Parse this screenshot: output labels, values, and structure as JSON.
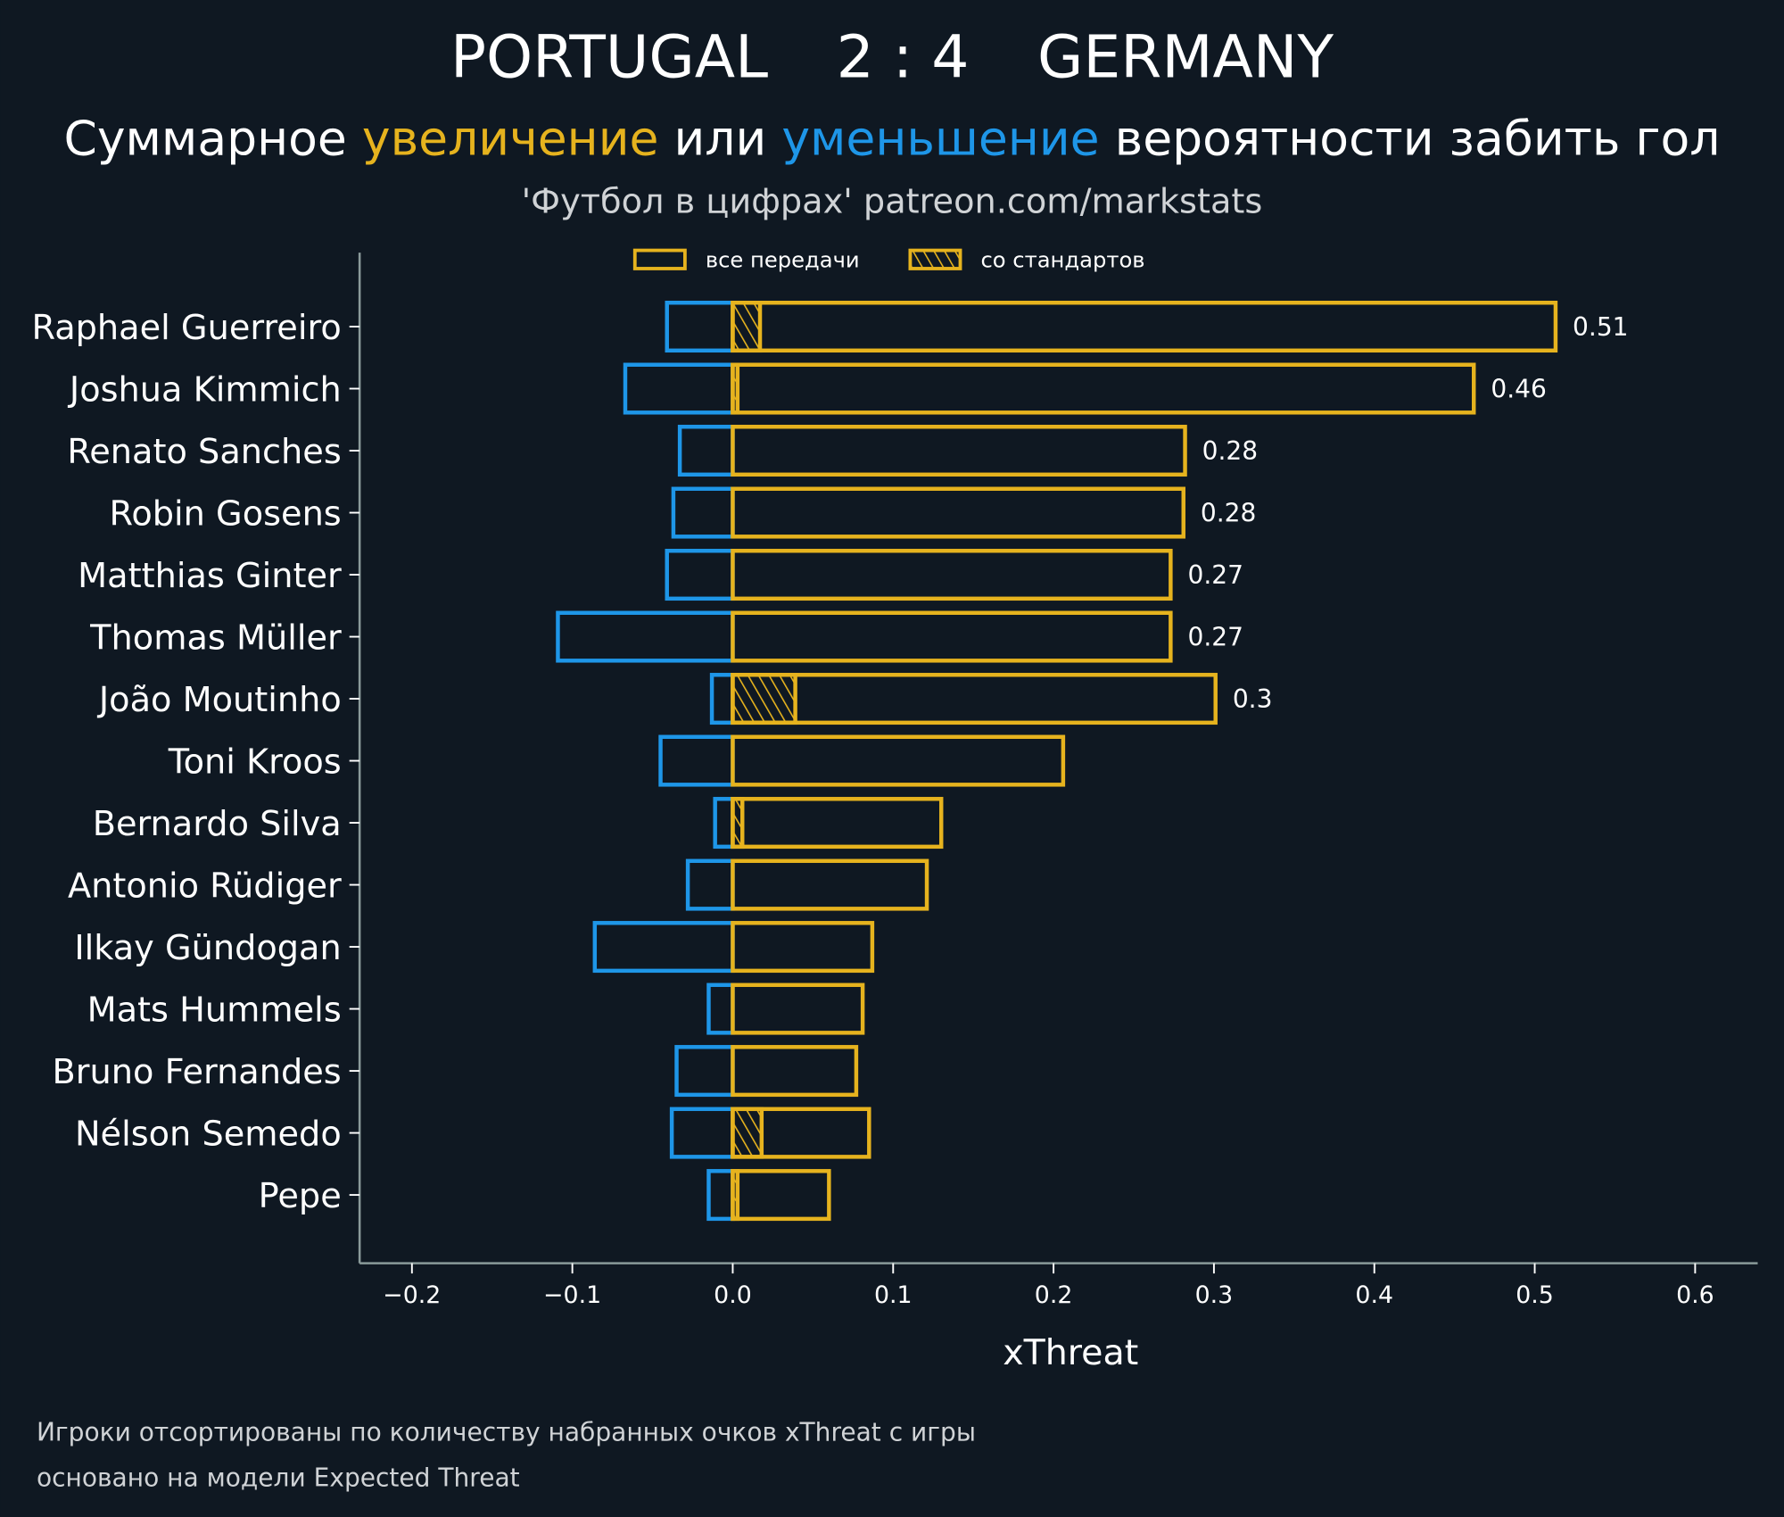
{
  "header": {
    "home_team": "PORTUGAL",
    "score": "2 : 4",
    "away_team": "GERMANY",
    "subtitle_parts": [
      {
        "text": "Суммарное ",
        "color": "#ffffff"
      },
      {
        "text": "увеличение",
        "color": "#e6b31e"
      },
      {
        "text": " или ",
        "color": "#ffffff"
      },
      {
        "text": "уменьшение",
        "color": "#1e96e8"
      },
      {
        "text": " вероятности забить гол",
        "color": "#ffffff"
      }
    ],
    "source": "'Футбол в цифрах' patreon.com/markstats"
  },
  "footer": {
    "line1": "Игроки отсортированы по количеству набранных очков xThreat с игры",
    "line2": "основано на модели Expected Threat"
  },
  "colors": {
    "background": "#0f1822",
    "increase": "#e6b31e",
    "decrease": "#1e96e8",
    "axis": "#8a9a9a"
  },
  "chart_data": {
    "type": "bar",
    "orientation": "horizontal",
    "title": "PORTUGAL 2 : 4 GERMANY",
    "xlabel": "xThreat",
    "ylabel": "",
    "xlim": [
      -0.23,
      0.64
    ],
    "xticks": [
      -0.2,
      -0.1,
      0.0,
      0.1,
      0.2,
      0.3,
      0.4,
      0.5,
      0.6
    ],
    "xtick_labels": [
      "−0.2",
      "−0.1",
      "0.0",
      "0.1",
      "0.2",
      "0.3",
      "0.4",
      "0.5",
      "0.6"
    ],
    "grid": false,
    "legend": {
      "placement": "top-center",
      "entries": [
        {
          "label": "все передачи",
          "style": "outline"
        },
        {
          "label": "со стандартов",
          "style": "hatched"
        }
      ]
    },
    "categories": [
      "Raphael Guerreiro",
      "Joshua Kimmich",
      "Renato Sanches",
      "Robin Gosens",
      "Matthias Ginter",
      "Thomas Müller",
      "João Moutinho",
      "Toni Kroos",
      "Bernardo Silva",
      "Antonio Rüdiger",
      "Ilkay Gündogan",
      "Mats Hummels",
      "Bruno Fernandes",
      "Nélson Semedo",
      "Pepe"
    ],
    "series": [
      {
        "name": "все передачи (увеличение)",
        "values": [
          0.513,
          0.462,
          0.282,
          0.281,
          0.273,
          0.273,
          0.301,
          0.206,
          0.13,
          0.121,
          0.087,
          0.081,
          0.077,
          0.085,
          0.06
        ]
      },
      {
        "name": "все передачи (уменьшение)",
        "values": [
          -0.041,
          -0.067,
          -0.033,
          -0.037,
          -0.041,
          -0.109,
          -0.013,
          -0.045,
          -0.011,
          -0.028,
          -0.086,
          -0.015,
          -0.035,
          -0.038,
          -0.015
        ]
      },
      {
        "name": "со стандартов",
        "values": [
          0.017,
          0.003,
          0.0,
          0.0,
          0.0,
          0.0,
          0.039,
          0.0,
          0.006,
          0.0,
          0.0,
          0.0,
          0.0,
          0.018,
          0.003
        ]
      }
    ],
    "value_labels": [
      "0.51",
      "0.46",
      "0.28",
      "0.28",
      "0.27",
      "0.27",
      "0.3",
      "",
      "",
      "",
      "",
      "",
      "",
      "",
      ""
    ]
  }
}
